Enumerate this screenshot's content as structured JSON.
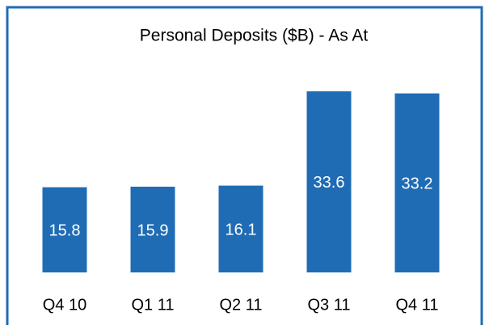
{
  "chart_data": {
    "type": "bar",
    "title": "Personal Deposits ($B) - As At",
    "categories": [
      "Q4 10",
      "Q1 11",
      "Q2 11",
      "Q3 11",
      "Q4 11"
    ],
    "values": [
      15.8,
      15.9,
      16.1,
      33.6,
      33.2
    ],
    "color": "#1f6cb5"
  }
}
